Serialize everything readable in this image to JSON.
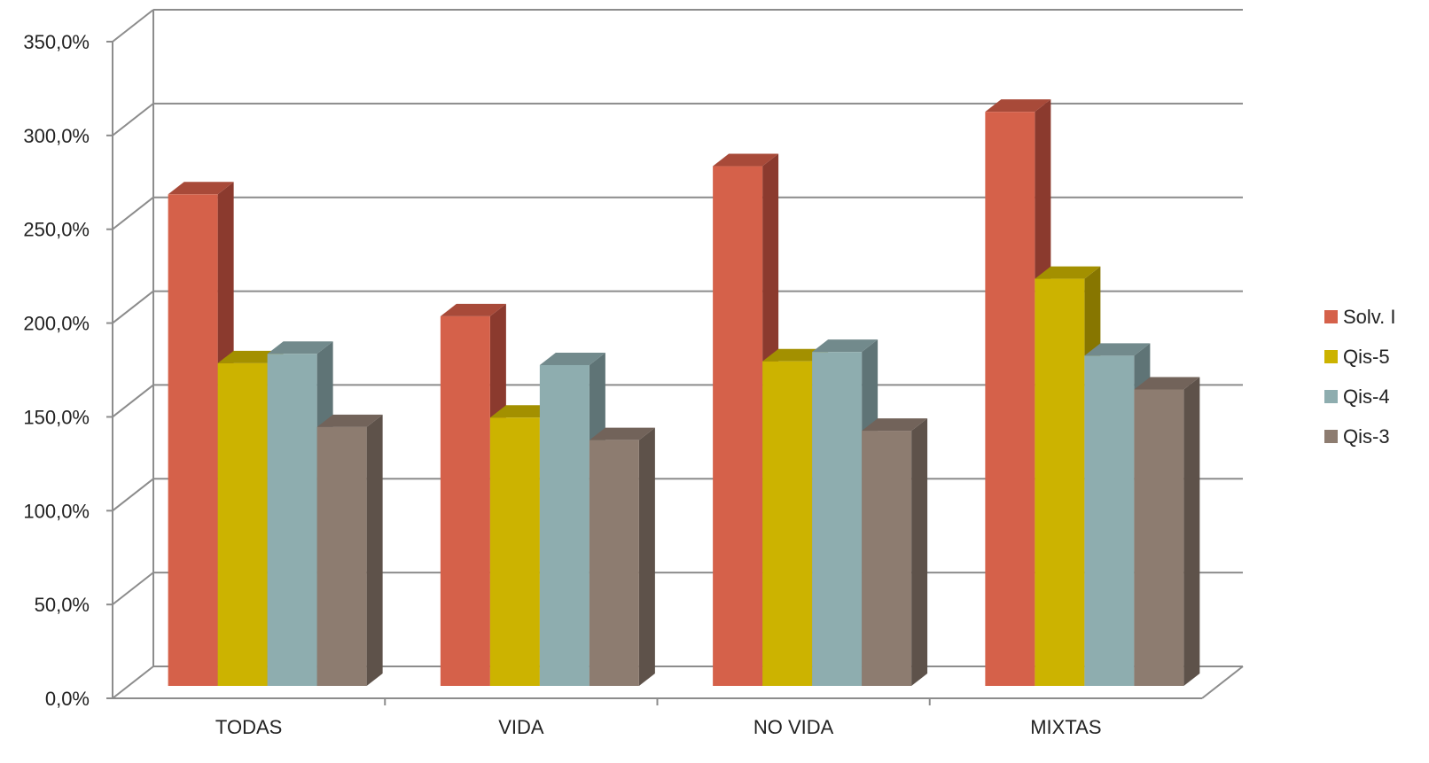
{
  "chart_data": {
    "type": "bar",
    "style": "3d-clustered-column",
    "categories": [
      "TODAS",
      "VIDA",
      "NO VIDA",
      "MIXTAS"
    ],
    "series": [
      {
        "name": "Solv. I",
        "values": [
          262,
          197,
          277,
          306
        ],
        "color": "#d5614a",
        "side_color": "#8b3a2e",
        "top_color": "#a84a39"
      },
      {
        "name": "Qis-5",
        "values": [
          172,
          143,
          173,
          217
        ],
        "color": "#ccb300",
        "side_color": "#877600",
        "top_color": "#a39000"
      },
      {
        "name": "Qis-4",
        "values": [
          177,
          171,
          178,
          176
        ],
        "color": "#8eadaf",
        "side_color": "#5f7476",
        "top_color": "#728a8c"
      },
      {
        "name": "Qis-3",
        "values": [
          138,
          131,
          136,
          158
        ],
        "color": "#8d7c70",
        "side_color": "#5e524a",
        "top_color": "#72635a"
      }
    ],
    "y_ticks": [
      "0,0%",
      "50,0%",
      "100,0%",
      "150,0%",
      "200,0%",
      "250,0%",
      "300,0%",
      "350,0%"
    ],
    "ylim": [
      0,
      350
    ],
    "y_tick_step": 50,
    "grid": true,
    "legend_position": "right",
    "grid_color": "#8c8c8c",
    "title": "",
    "xlabel": "",
    "ylabel": ""
  }
}
